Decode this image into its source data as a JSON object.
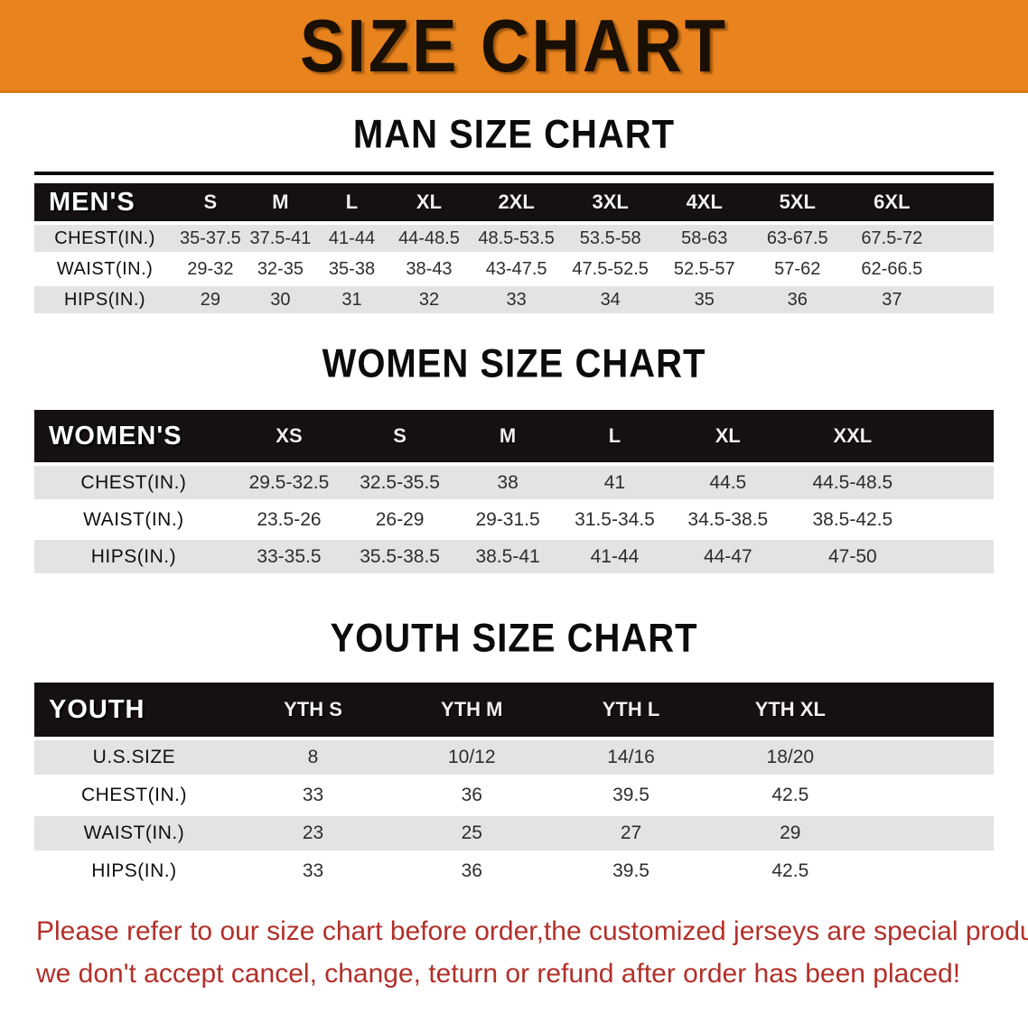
{
  "banner": {
    "title": "SIZE CHART",
    "bg_color": "#E8831E",
    "text_color": "#190f04"
  },
  "sections": [
    {
      "heading": "MAN SIZE CHART",
      "corner_label": "MEN'S",
      "columns": [
        "S",
        "M",
        "L",
        "XL",
        "2XL",
        "3XL",
        "4XL",
        "5XL",
        "6XL"
      ],
      "rows": [
        {
          "label": "CHEST(IN.)",
          "values": [
            "35-37.5",
            "37.5-41",
            "41-44",
            "44-48.5",
            "48.5-53.5",
            "53.5-58",
            "58-63",
            "63-67.5",
            "67.5-72"
          ]
        },
        {
          "label": "WAIST(IN.)",
          "values": [
            "29-32",
            "32-35",
            "35-38",
            "38-43",
            "43-47.5",
            "47.5-52.5",
            "52.5-57",
            "57-62",
            "62-66.5"
          ]
        },
        {
          "label": "HIPS(IN.)",
          "values": [
            "29",
            "30",
            "31",
            "32",
            "33",
            "34",
            "35",
            "36",
            "37"
          ]
        }
      ]
    },
    {
      "heading": "WOMEN SIZE CHART",
      "corner_label": "WOMEN'S",
      "columns": [
        "XS",
        "S",
        "M",
        "L",
        "XL",
        "XXL"
      ],
      "rows": [
        {
          "label": "CHEST(IN.)",
          "values": [
            "29.5-32.5",
            "32.5-35.5",
            "38",
            "41",
            "44.5",
            "44.5-48.5"
          ]
        },
        {
          "label": "WAIST(IN.)",
          "values": [
            "23.5-26",
            "26-29",
            "29-31.5",
            "31.5-34.5",
            "34.5-38.5",
            "38.5-42.5"
          ]
        },
        {
          "label": "HIPS(IN.)",
          "values": [
            "33-35.5",
            "35.5-38.5",
            "38.5-41",
            "41-44",
            "44-47",
            "47-50"
          ]
        }
      ]
    },
    {
      "heading": "YOUTH SIZE CHART",
      "corner_label": "YOUTH",
      "columns": [
        "YTH S",
        "YTH M",
        "YTH L",
        "YTH XL"
      ],
      "rows": [
        {
          "label": "U.S.SIZE",
          "values": [
            "8",
            "10/12",
            "14/16",
            "18/20"
          ]
        },
        {
          "label": "CHEST(IN.)",
          "values": [
            "33",
            "36",
            "39.5",
            "42.5"
          ]
        },
        {
          "label": "WAIST(IN.)",
          "values": [
            "23",
            "25",
            "27",
            "29"
          ]
        },
        {
          "label": "HIPS(IN.)",
          "values": [
            "33",
            "36",
            "39.5",
            "42.5"
          ]
        }
      ]
    }
  ],
  "footer": {
    "lines": [
      "Please refer to our size chart before order,the customized jerseys are special products,",
      "we don't accept cancel, change, teturn or refund after order has been placed!"
    ],
    "text_color": "#b2302a"
  },
  "colors": {
    "banner_orange": "#E8831E",
    "table_header_black": "#151110",
    "stripe_gray": "#e3e3e3",
    "footer_red": "#b2302a"
  }
}
